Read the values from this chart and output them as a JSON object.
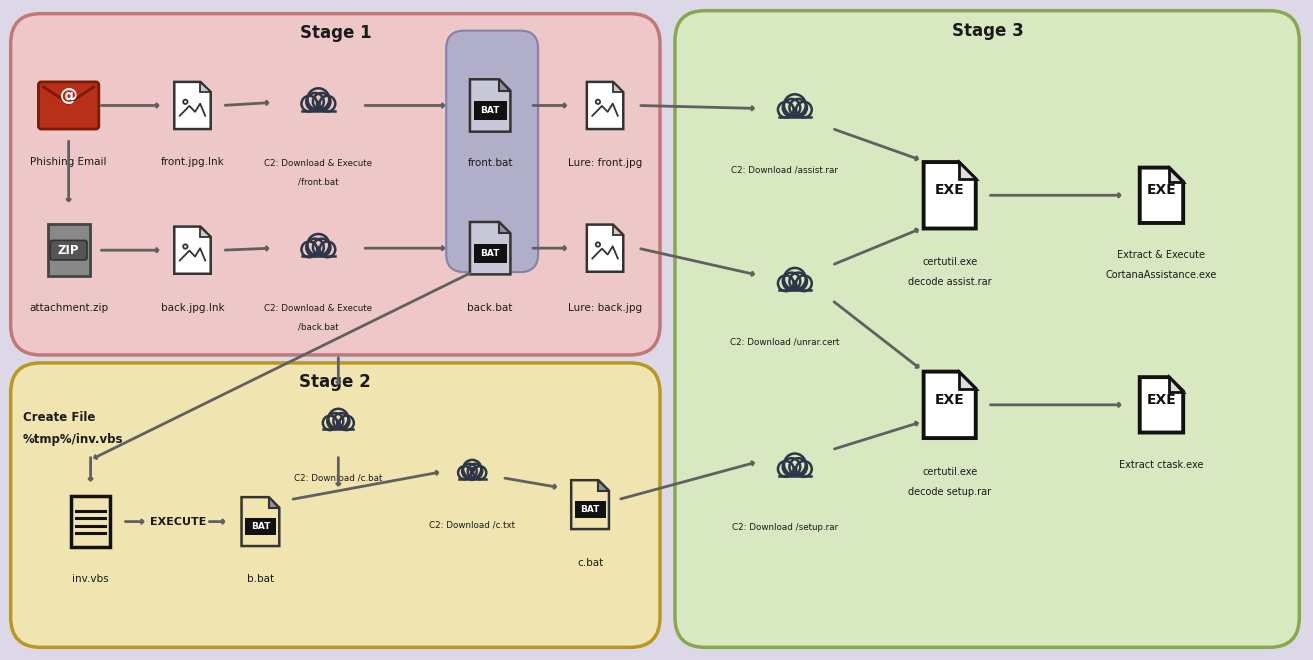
{
  "bg_color": "#ddd8e8",
  "stage1_color": "#eec8c8",
  "stage1_border": "#c07878",
  "stage2_color": "#f0e4b0",
  "stage2_border": "#b89820",
  "stage3_color": "#d8e8c0",
  "stage3_border": "#88a850",
  "bat_highlight_color": "#b0aec8",
  "bat_highlight_border": "#8880a8",
  "dark_color": "#2d3548",
  "arrow_color": "#606060",
  "text_color": "#1a1a1a",
  "stage1_title": "Stage 1",
  "stage2_title": "Stage 2",
  "stage3_title": "Stage 3"
}
